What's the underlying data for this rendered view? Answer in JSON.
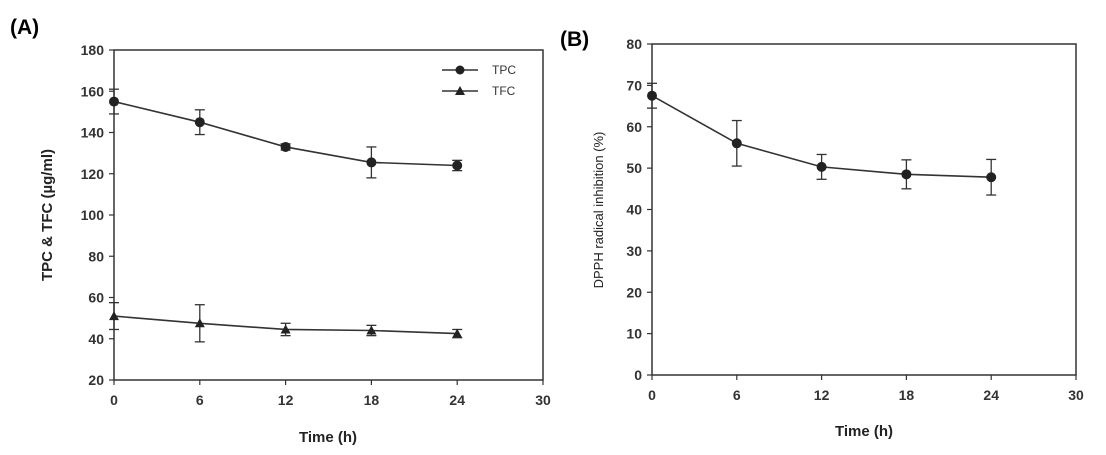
{
  "chart_data": [
    {
      "panel_label": "(A)",
      "type": "line",
      "xlabel": "Time (h)",
      "ylabel": "TPC & TFC (µg/ml)",
      "xlim": [
        0,
        30
      ],
      "ylim": [
        20,
        180
      ],
      "xticks": [
        "0",
        "6",
        "12",
        "18",
        "24",
        "30"
      ],
      "yticks": [
        "20",
        "40",
        "60",
        "80",
        "100",
        "120",
        "140",
        "160",
        "180"
      ],
      "grid": false,
      "legend_position": "top-right",
      "x": [
        0,
        6,
        12,
        18,
        24
      ],
      "series": [
        {
          "name": "TPC",
          "marker": "circle",
          "values": [
            155,
            145,
            133,
            125.5,
            124
          ],
          "errors": [
            6,
            6,
            1.5,
            7.5,
            2.5
          ]
        },
        {
          "name": "TFC",
          "marker": "triangle",
          "values": [
            51,
            47.5,
            44.5,
            44,
            42.5
          ],
          "errors": [
            6.5,
            9,
            3,
            2.5,
            2
          ]
        }
      ]
    },
    {
      "panel_label": "(B)",
      "type": "line",
      "xlabel": "Time (h)",
      "ylabel": "DPPH radical inhibition (%)",
      "xlim": [
        0,
        30
      ],
      "ylim": [
        0,
        80
      ],
      "xticks": [
        "0",
        "6",
        "12",
        "18",
        "24",
        "30"
      ],
      "yticks": [
        "0",
        "10",
        "20",
        "30",
        "40",
        "50",
        "60",
        "70",
        "80"
      ],
      "grid": false,
      "legend_position": "none",
      "x": [
        0,
        6,
        12,
        18,
        24
      ],
      "series": [
        {
          "marker": "circle",
          "values": [
            67.5,
            56,
            50.3,
            48.5,
            47.8
          ],
          "errors": [
            3,
            5.5,
            3,
            3.5,
            4.3
          ]
        }
      ]
    }
  ]
}
